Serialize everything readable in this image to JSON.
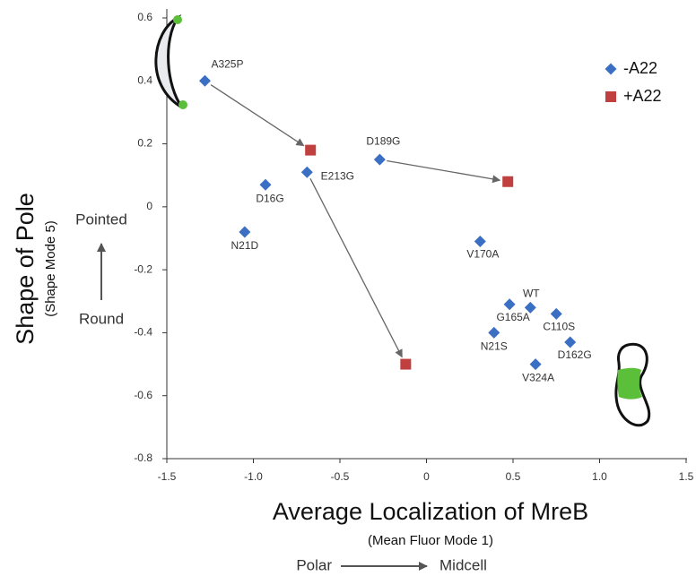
{
  "chart_data": {
    "type": "scatter",
    "xlabel": "Average Localization of MreB",
    "xlabel_note": "(Mean Fluor Mode 1)",
    "x_arrow_labels": [
      "Polar",
      "Midcell"
    ],
    "ylabel": "Shape of Pole",
    "ylabel_note": "(Shape Mode 5)",
    "y_arrow_labels": [
      "Round",
      "Pointed"
    ],
    "xlim": [
      -1.5,
      1.5
    ],
    "xticks": [
      -1.5,
      {
        "value": -1,
        "label": "-1.0"
      },
      -0.5,
      0,
      0.5,
      {
        "value": 1,
        "label": "1.0"
      },
      1.5
    ],
    "ylim": [
      -0.8,
      0.6
    ],
    "yticks": [
      0.6,
      0.4,
      0.2,
      0,
      -0.2,
      -0.4,
      -0.6,
      -0.8
    ],
    "legend": "top-right",
    "series": [
      {
        "name": "-A22",
        "color": "#3a6fc4",
        "marker": "diamond",
        "labels": [
          "A325P",
          "D16G",
          "E213G",
          "N21D",
          "D189G",
          "V170A",
          "G165A",
          "WT",
          "C110S",
          "N21S",
          "D162G",
          "V324A"
        ],
        "x": [
          -1.28,
          -0.93,
          -0.69,
          -1.05,
          -0.27,
          0.31,
          0.48,
          0.6,
          0.75,
          0.39,
          0.83,
          0.63
        ],
        "values": [
          0.4,
          0.07,
          0.11,
          -0.08,
          0.15,
          -0.11,
          -0.31,
          -0.32,
          -0.34,
          -0.4,
          -0.43,
          -0.5
        ]
      },
      {
        "name": "+A22",
        "color": "#c0403f",
        "marker": "square",
        "x": [
          -0.67,
          0.47,
          -0.12
        ],
        "values": [
          0.18,
          0.08,
          -0.5
        ]
      }
    ]
  }
}
